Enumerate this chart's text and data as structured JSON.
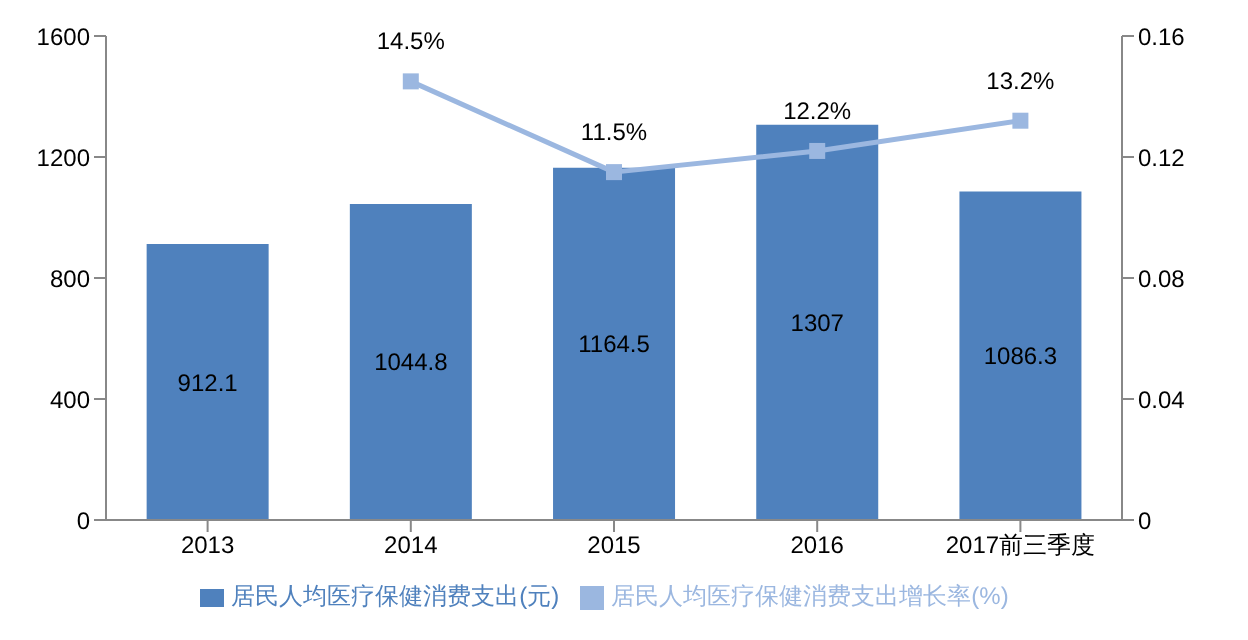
{
  "chart_data": {
    "type": "bar",
    "categories": [
      "2013",
      "2014",
      "2015",
      "2016",
      "2017前三季度"
    ],
    "series": [
      {
        "name": "居民人均医疗保健消费支出(元)",
        "color": "#4f81bd",
        "values": [
          912.1,
          1044.8,
          1164.5,
          1307,
          1086.3
        ],
        "value_labels": [
          "912.1",
          "1044.8",
          "1164.5",
          "1307",
          "1086.3"
        ]
      },
      {
        "type": "line",
        "axis": "y2",
        "name": "居民人均医疗保健消费支出增长率(%)",
        "color": "#9bb7e0",
        "values": [
          null,
          0.145,
          0.115,
          0.122,
          0.132
        ],
        "value_labels": [
          null,
          "14.5%",
          "11.5%",
          "12.2%",
          "13.2%"
        ]
      }
    ],
    "ylim": [
      0,
      1600
    ],
    "yticks": [
      0,
      400,
      800,
      1200,
      1600
    ],
    "y2lim": [
      0,
      0.16
    ],
    "y2ticks": [
      0,
      0.04,
      0.08,
      0.12,
      0.16
    ],
    "grid": false,
    "legend": "bottom",
    "marker": "square",
    "line_style": "solid"
  }
}
